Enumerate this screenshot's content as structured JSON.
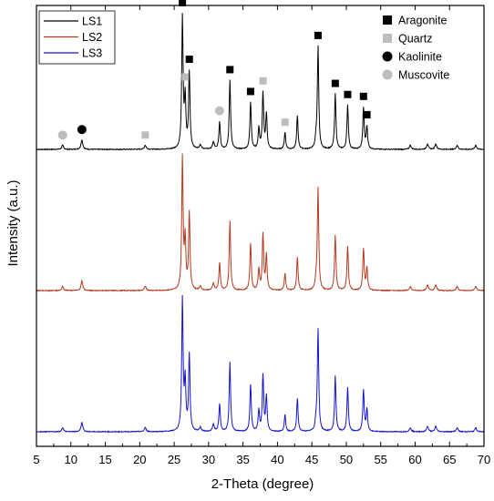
{
  "chart_data": {
    "type": "line",
    "xlabel": "2-Theta (degree)",
    "ylabel": "Intensity (a.u.)",
    "xlim": [
      5,
      70
    ],
    "x_ticks": [
      "5",
      "10",
      "15",
      "20",
      "25",
      "30",
      "35",
      "40",
      "45",
      "50",
      "55",
      "60",
      "65",
      "70"
    ],
    "y_ticks_shown": false,
    "legend_placement": "top-left",
    "series": [
      {
        "name": "LS1",
        "color": "#000000",
        "offset": 2.0
      },
      {
        "name": "LS2",
        "color": "#b5391f",
        "offset": 1.0
      },
      {
        "name": "LS3",
        "color": "#1414d0",
        "offset": 0.0
      }
    ],
    "peaks": [
      {
        "x": 8.8,
        "y": 0.03,
        "w": 0.15
      },
      {
        "x": 11.6,
        "y": 0.07,
        "w": 0.15
      },
      {
        "x": 20.8,
        "y": 0.03,
        "w": 0.15
      },
      {
        "x": 26.2,
        "y": 0.95,
        "w": 0.12
      },
      {
        "x": 26.6,
        "y": 0.35,
        "w": 0.12
      },
      {
        "x": 27.2,
        "y": 0.55,
        "w": 0.12
      },
      {
        "x": 28.8,
        "y": 0.03,
        "w": 0.15
      },
      {
        "x": 30.7,
        "y": 0.05,
        "w": 0.15
      },
      {
        "x": 31.6,
        "y": 0.2,
        "w": 0.12
      },
      {
        "x": 33.1,
        "y": 0.5,
        "w": 0.12
      },
      {
        "x": 36.1,
        "y": 0.34,
        "w": 0.12
      },
      {
        "x": 37.3,
        "y": 0.15,
        "w": 0.12
      },
      {
        "x": 37.9,
        "y": 0.4,
        "w": 0.12
      },
      {
        "x": 38.4,
        "y": 0.25,
        "w": 0.12
      },
      {
        "x": 41.1,
        "y": 0.12,
        "w": 0.12
      },
      {
        "x": 42.9,
        "y": 0.24,
        "w": 0.12
      },
      {
        "x": 45.6,
        "y": 0.06,
        "w": 0.12
      },
      {
        "x": 45.9,
        "y": 0.74,
        "w": 0.12
      },
      {
        "x": 48.4,
        "y": 0.4,
        "w": 0.12
      },
      {
        "x": 50.2,
        "y": 0.32,
        "w": 0.12
      },
      {
        "x": 52.5,
        "y": 0.3,
        "w": 0.12
      },
      {
        "x": 53.0,
        "y": 0.16,
        "w": 0.12
      },
      {
        "x": 59.3,
        "y": 0.03,
        "w": 0.15
      },
      {
        "x": 61.8,
        "y": 0.04,
        "w": 0.15
      },
      {
        "x": 63.0,
        "y": 0.04,
        "w": 0.15
      },
      {
        "x": 66.1,
        "y": 0.03,
        "w": 0.15
      },
      {
        "x": 68.8,
        "y": 0.03,
        "w": 0.15
      }
    ],
    "phase_legend": [
      {
        "label": "Aragonite",
        "marker": "square",
        "color": "#000000"
      },
      {
        "label": "Quartz",
        "marker": "square",
        "color": "#bdbdbd"
      },
      {
        "label": "Kaolinite",
        "marker": "circle",
        "color": "#000000"
      },
      {
        "label": "Muscovite",
        "marker": "circle",
        "color": "#bdbdbd"
      }
    ],
    "phase_markers": [
      {
        "phase": "Muscovite",
        "x": 8.8
      },
      {
        "phase": "Kaolinite",
        "x": 11.6
      },
      {
        "phase": "Quartz",
        "x": 20.8
      },
      {
        "phase": "Aragonite",
        "x": 26.2
      },
      {
        "phase": "Quartz",
        "x": 26.6
      },
      {
        "phase": "Aragonite",
        "x": 27.2
      },
      {
        "phase": "Muscovite",
        "x": 31.6
      },
      {
        "phase": "Aragonite",
        "x": 33.1
      },
      {
        "phase": "Aragonite",
        "x": 36.1
      },
      {
        "phase": "Quartz",
        "x": 37.9
      },
      {
        "phase": "Quartz",
        "x": 41.1
      },
      {
        "phase": "Aragonite",
        "x": 45.9
      },
      {
        "phase": "Aragonite",
        "x": 48.4
      },
      {
        "phase": "Aragonite",
        "x": 50.2
      },
      {
        "phase": "Aragonite",
        "x": 52.5
      },
      {
        "phase": "Aragonite",
        "x": 53.0
      }
    ]
  }
}
